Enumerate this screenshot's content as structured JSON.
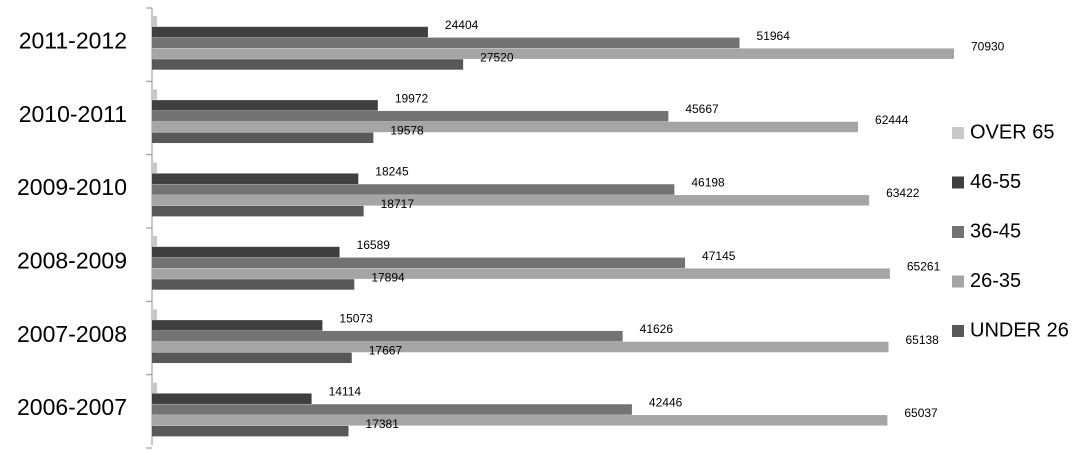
{
  "chart_data": {
    "type": "bar",
    "orientation": "horizontal",
    "categories": [
      "2011-2012",
      "2010-2011",
      "2009-2010",
      "2008-2009",
      "2007-2008",
      "2006-2007"
    ],
    "series": [
      {
        "name": "OVER 65",
        "color": "#c8c8c8",
        "values": [
          null,
          null,
          null,
          null,
          null,
          null
        ]
      },
      {
        "name": "46-55",
        "color": "#3f3f3f",
        "values": [
          24404,
          19972,
          18245,
          16589,
          15073,
          14114
        ]
      },
      {
        "name": "36-45",
        "color": "#737373",
        "values": [
          51964,
          45667,
          46198,
          47145,
          41626,
          42446
        ]
      },
      {
        "name": "26-35",
        "color": "#a5a5a5",
        "values": [
          70930,
          62444,
          63422,
          65261,
          65138,
          65037
        ]
      },
      {
        "name": "UNDER 26",
        "color": "#585858",
        "values": [
          27520,
          19578,
          18717,
          17894,
          17667,
          17381
        ]
      }
    ],
    "legend": {
      "position": "right",
      "order": [
        "OVER 65",
        "46-55",
        "36-45",
        "26-35",
        "UNDER 26"
      ]
    },
    "xlim": [
      0,
      75000
    ],
    "grid": false,
    "title": "",
    "xlabel": "",
    "ylabel": ""
  }
}
